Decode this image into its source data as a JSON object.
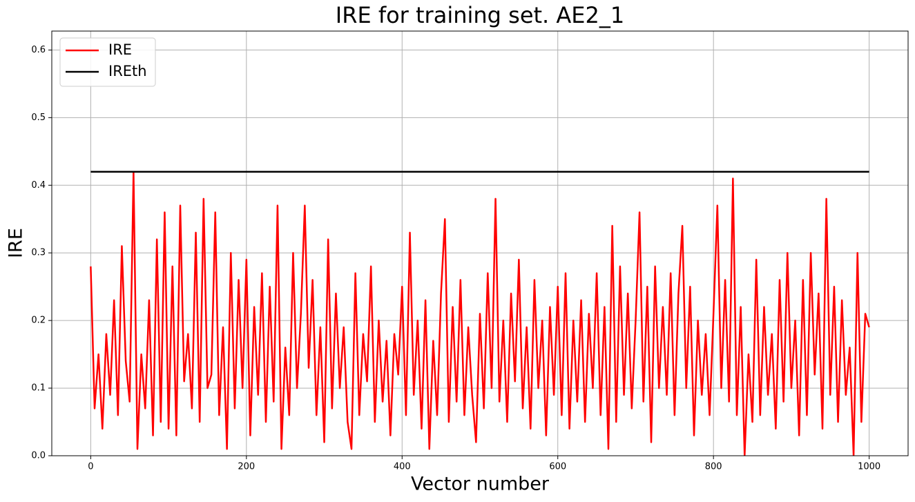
{
  "chart_data": {
    "type": "line",
    "title": "IRE for training set. AE2_1",
    "xlabel": "Vector number",
    "ylabel": "IRE",
    "xlim": [
      -50,
      1050
    ],
    "ylim": [
      0,
      0.628
    ],
    "xticks": [
      0,
      200,
      400,
      600,
      800,
      1000
    ],
    "yticks": [
      {
        "value": 0,
        "label": "0.0"
      },
      0.1,
      0.2,
      0.3,
      0.4,
      0.5,
      0.6
    ],
    "grid": true,
    "legend": "upper left",
    "series": [
      {
        "name": "IRE",
        "color": "#ff0000",
        "x": [
          0,
          5,
          10,
          15,
          20,
          25,
          30,
          35,
          40,
          45,
          50,
          55,
          60,
          65,
          70,
          75,
          80,
          85,
          90,
          95,
          100,
          105,
          110,
          115,
          120,
          125,
          130,
          135,
          140,
          145,
          150,
          155,
          160,
          165,
          170,
          175,
          180,
          185,
          190,
          195,
          200,
          205,
          210,
          215,
          220,
          225,
          230,
          235,
          240,
          245,
          250,
          255,
          260,
          265,
          270,
          275,
          280,
          285,
          290,
          295,
          300,
          305,
          310,
          315,
          320,
          325,
          330,
          335,
          340,
          345,
          350,
          355,
          360,
          365,
          370,
          375,
          380,
          385,
          390,
          395,
          400,
          405,
          410,
          415,
          420,
          425,
          430,
          435,
          440,
          445,
          450,
          455,
          460,
          465,
          470,
          475,
          480,
          485,
          490,
          495,
          500,
          505,
          510,
          515,
          520,
          525,
          530,
          535,
          540,
          545,
          550,
          555,
          560,
          565,
          570,
          575,
          580,
          585,
          590,
          595,
          600,
          605,
          610,
          615,
          620,
          625,
          630,
          635,
          640,
          645,
          650,
          655,
          660,
          665,
          670,
          675,
          680,
          685,
          690,
          695,
          700,
          705,
          710,
          715,
          720,
          725,
          730,
          735,
          740,
          745,
          750,
          755,
          760,
          765,
          770,
          775,
          780,
          785,
          790,
          795,
          800,
          805,
          810,
          815,
          820,
          825,
          830,
          835,
          840,
          845,
          850,
          855,
          860,
          865,
          870,
          875,
          880,
          885,
          890,
          895,
          900,
          905,
          910,
          915,
          920,
          925,
          930,
          935,
          940,
          945,
          950,
          955,
          960,
          965,
          970,
          975,
          980,
          985,
          990,
          995,
          1000
        ],
        "values": [
          0.28,
          0.07,
          0.15,
          0.04,
          0.18,
          0.09,
          0.23,
          0.06,
          0.31,
          0.14,
          0.08,
          0.42,
          0.01,
          0.15,
          0.07,
          0.23,
          0.03,
          0.32,
          0.05,
          0.36,
          0.04,
          0.28,
          0.03,
          0.37,
          0.11,
          0.18,
          0.07,
          0.33,
          0.05,
          0.38,
          0.1,
          0.12,
          0.36,
          0.06,
          0.19,
          0.01,
          0.3,
          0.07,
          0.26,
          0.1,
          0.29,
          0.03,
          0.22,
          0.09,
          0.27,
          0.05,
          0.25,
          0.08,
          0.37,
          0.01,
          0.16,
          0.06,
          0.3,
          0.1,
          0.21,
          0.37,
          0.13,
          0.26,
          0.06,
          0.19,
          0.02,
          0.32,
          0.07,
          0.24,
          0.1,
          0.19,
          0.05,
          0.01,
          0.27,
          0.06,
          0.18,
          0.11,
          0.28,
          0.05,
          0.2,
          0.08,
          0.17,
          0.03,
          0.18,
          0.12,
          0.25,
          0.06,
          0.33,
          0.09,
          0.2,
          0.04,
          0.23,
          0.01,
          0.17,
          0.06,
          0.24,
          0.35,
          0.05,
          0.22,
          0.08,
          0.26,
          0.06,
          0.19,
          0.09,
          0.02,
          0.21,
          0.07,
          0.27,
          0.1,
          0.38,
          0.08,
          0.2,
          0.05,
          0.24,
          0.11,
          0.29,
          0.07,
          0.19,
          0.04,
          0.26,
          0.1,
          0.2,
          0.03,
          0.22,
          0.09,
          0.25,
          0.06,
          0.27,
          0.04,
          0.2,
          0.08,
          0.23,
          0.05,
          0.21,
          0.1,
          0.27,
          0.06,
          0.22,
          0.01,
          0.34,
          0.05,
          0.28,
          0.09,
          0.24,
          0.07,
          0.2,
          0.36,
          0.08,
          0.25,
          0.02,
          0.28,
          0.1,
          0.22,
          0.09,
          0.27,
          0.06,
          0.24,
          0.34,
          0.1,
          0.25,
          0.03,
          0.2,
          0.09,
          0.18,
          0.06,
          0.21,
          0.37,
          0.1,
          0.26,
          0.08,
          0.41,
          0.06,
          0.22,
          0.0,
          0.15,
          0.05,
          0.29,
          0.06,
          0.22,
          0.09,
          0.18,
          0.04,
          0.26,
          0.08,
          0.3,
          0.1,
          0.2,
          0.03,
          0.26,
          0.06,
          0.3,
          0.12,
          0.24,
          0.04,
          0.38,
          0.09,
          0.25,
          0.05,
          0.23,
          0.09,
          0.16,
          0.0,
          0.3,
          0.05,
          0.21,
          0.19
        ]
      },
      {
        "name": "IREth",
        "color": "#000000",
        "x": [
          0,
          1000
        ],
        "values": [
          0.42,
          0.42
        ]
      }
    ]
  }
}
